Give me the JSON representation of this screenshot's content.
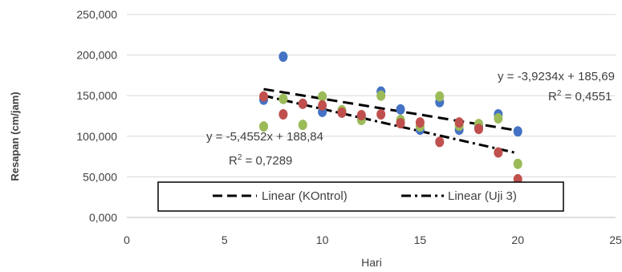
{
  "chart_data": {
    "type": "scatter",
    "title": "",
    "xlabel": "Hari",
    "ylabel": "Resapan (cm/jam)",
    "xlim": [
      0,
      25
    ],
    "ylim": [
      0,
      250000
    ],
    "x_ticks": [
      0,
      5,
      10,
      15,
      20,
      25
    ],
    "x_tick_labels": [
      "0",
      "5",
      "10",
      "15",
      "20",
      "25"
    ],
    "y_ticks": [
      0,
      50000,
      100000,
      150000,
      200000,
      250000
    ],
    "y_tick_labels": [
      "0,000",
      "50,000",
      "100,000",
      "150,000",
      "200,000",
      "250,000"
    ],
    "grid": "horizontal",
    "series": [
      {
        "color": "#4472C4",
        "points": [
          {
            "x": 7,
            "y": 145000
          },
          {
            "x": 8,
            "y": 198000
          },
          {
            "x": 9,
            "y": 140000
          },
          {
            "x": 10,
            "y": 130000
          },
          {
            "x": 11,
            "y": 130000
          },
          {
            "x": 12,
            "y": 125000
          },
          {
            "x": 13,
            "y": 155000
          },
          {
            "x": 14,
            "y": 133000
          },
          {
            "x": 15,
            "y": 108000
          },
          {
            "x": 16,
            "y": 142000
          },
          {
            "x": 17,
            "y": 108000
          },
          {
            "x": 18,
            "y": 112000
          },
          {
            "x": 19,
            "y": 127000
          },
          {
            "x": 20,
            "y": 106000
          }
        ]
      },
      {
        "color": "#9BBB59",
        "points": [
          {
            "x": 7,
            "y": 112000
          },
          {
            "x": 8,
            "y": 146000
          },
          {
            "x": 9,
            "y": 114000
          },
          {
            "x": 10,
            "y": 149000
          },
          {
            "x": 11,
            "y": 132000
          },
          {
            "x": 12,
            "y": 120000
          },
          {
            "x": 13,
            "y": 150000
          },
          {
            "x": 14,
            "y": 120000
          },
          {
            "x": 15,
            "y": 112000
          },
          {
            "x": 16,
            "y": 149000
          },
          {
            "x": 17,
            "y": 113000
          },
          {
            "x": 18,
            "y": 115000
          },
          {
            "x": 19,
            "y": 122000
          },
          {
            "x": 20,
            "y": 66000
          }
        ]
      },
      {
        "color": "#C0504D",
        "points": [
          {
            "x": 7,
            "y": 149000
          },
          {
            "x": 8,
            "y": 127000
          },
          {
            "x": 9,
            "y": 140000
          },
          {
            "x": 10,
            "y": 138000
          },
          {
            "x": 11,
            "y": 129000
          },
          {
            "x": 12,
            "y": 126000
          },
          {
            "x": 13,
            "y": 127000
          },
          {
            "x": 14,
            "y": 116000
          },
          {
            "x": 15,
            "y": 117000
          },
          {
            "x": 16,
            "y": 93000
          },
          {
            "x": 17,
            "y": 117000
          },
          {
            "x": 18,
            "y": 109000
          },
          {
            "x": 19,
            "y": 80000
          },
          {
            "x": 20,
            "y": 47000
          }
        ]
      }
    ],
    "trendlines": [
      {
        "name": "Linear (KOntrol)",
        "dash": "long-dash",
        "color": "#000000",
        "x_range": [
          7,
          20
        ],
        "y_range": [
          158000,
          107000
        ],
        "equation": "y = -3,9234x + 185,69",
        "r2_prefix": "R",
        "r2_suffix": " = 0,4551"
      },
      {
        "name": "Linear (Uji 3)",
        "dash": "dash-dot",
        "color": "#000000",
        "x_range": [
          7,
          20
        ],
        "y_range": [
          150000,
          79000
        ],
        "equation": "y = -5,4552x + 188,84",
        "r2_prefix": "R",
        "r2_suffix": " = 0,7289"
      }
    ],
    "r2_superscript": "2",
    "legend": {
      "position": "bottom-inside",
      "entries": [
        "Linear (KOntrol)",
        "Linear (Uji 3)"
      ]
    }
  }
}
